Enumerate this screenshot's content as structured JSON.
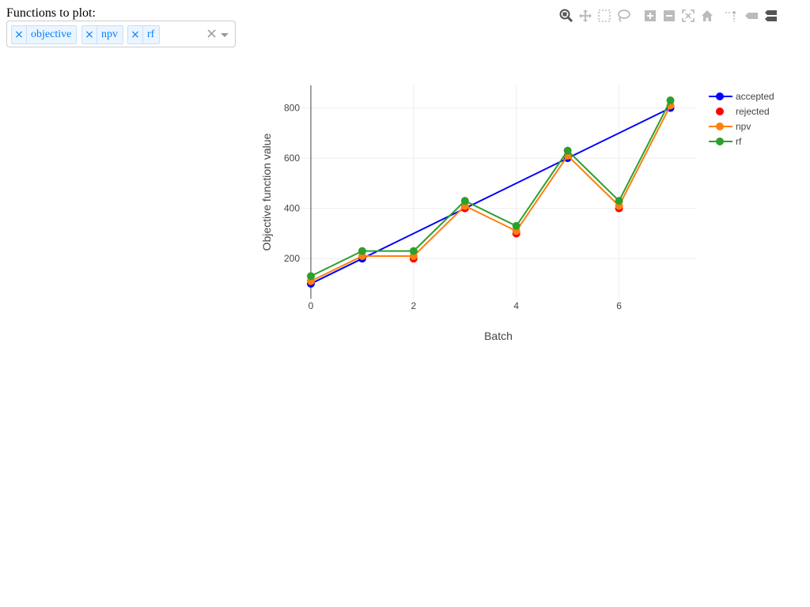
{
  "filter": {
    "label": "Functions to plot:",
    "chips": [
      {
        "label": "objective"
      },
      {
        "label": "npv"
      },
      {
        "label": "rf"
      }
    ],
    "remove_glyph": "×",
    "clear_glyph": "×"
  },
  "modebar": {
    "buttons": [
      {
        "name": "zoom-icon"
      },
      {
        "name": "pan-icon"
      },
      {
        "name": "box-select-icon"
      },
      {
        "name": "lasso-select-icon"
      },
      {
        "name": "zoom-in-icon"
      },
      {
        "name": "zoom-out-icon"
      },
      {
        "name": "autoscale-icon"
      },
      {
        "name": "reset-axes-icon"
      },
      {
        "name": "spike-lines-icon"
      },
      {
        "name": "hover-closest-icon"
      },
      {
        "name": "hover-compare-icon"
      }
    ]
  },
  "chart_data": {
    "type": "line",
    "xlabel": "Batch",
    "ylabel": "Objective function value",
    "xlim": [
      -0.2,
      7.5
    ],
    "ylim": [
      40,
      890
    ],
    "xticks": [
      0,
      2,
      4,
      6
    ],
    "yticks": [
      200,
      400,
      600,
      800
    ],
    "grid": true,
    "legend_position": "top-right",
    "series": [
      {
        "name": "accepted",
        "mode": "lines+markers",
        "color": "#0000ff",
        "x": [
          0,
          1,
          5,
          7
        ],
        "y": [
          100,
          200,
          600,
          800
        ]
      },
      {
        "name": "rejected",
        "mode": "markers",
        "color": "#ff0000",
        "x": [
          2,
          3,
          4,
          6
        ],
        "y": [
          200,
          400,
          300,
          400
        ]
      },
      {
        "name": "npv",
        "mode": "lines+markers",
        "color": "#ff7f0e",
        "x": [
          0,
          1,
          2,
          3,
          4,
          5,
          6,
          7
        ],
        "y": [
          110,
          210,
          210,
          410,
          310,
          610,
          410,
          810
        ]
      },
      {
        "name": "rf",
        "mode": "lines+markers",
        "color": "#2ca02c",
        "x": [
          0,
          1,
          2,
          3,
          4,
          5,
          6,
          7
        ],
        "y": [
          130,
          230,
          230,
          430,
          330,
          630,
          430,
          830
        ]
      }
    ]
  }
}
